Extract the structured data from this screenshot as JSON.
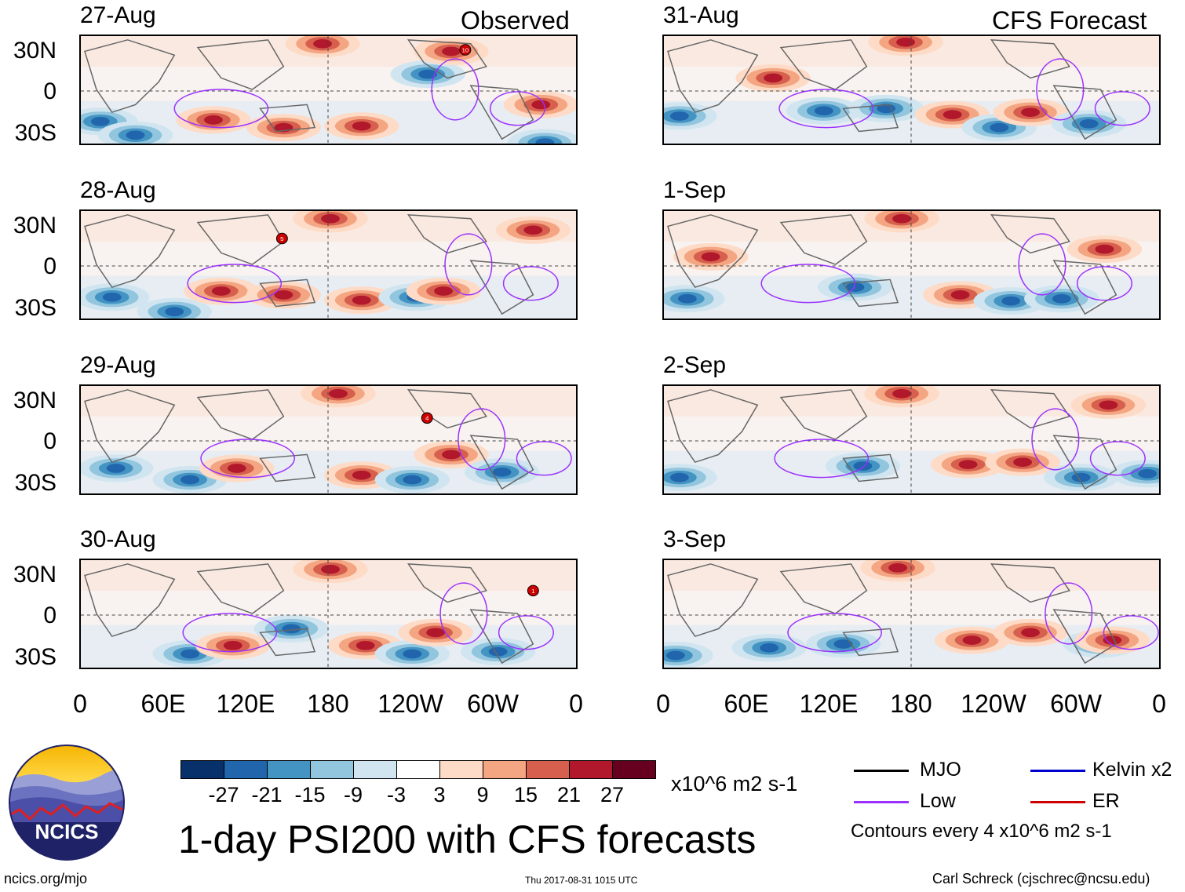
{
  "header": {
    "observed_label": "Observed",
    "forecast_label": "CFS Forecast"
  },
  "panels": [
    {
      "date": "27-Aug"
    },
    {
      "date": "28-Aug"
    },
    {
      "date": "29-Aug"
    },
    {
      "date": "30-Aug"
    },
    {
      "date": "31-Aug"
    },
    {
      "date": "1-Sep"
    },
    {
      "date": "2-Sep"
    },
    {
      "date": "3-Sep"
    }
  ],
  "axes": {
    "lat_labels": [
      "30N",
      "0",
      "30S"
    ],
    "lon_labels": [
      "0",
      "60E",
      "120E",
      "180",
      "120W",
      "60W",
      "0"
    ]
  },
  "storm_markers": [
    "10",
    "5",
    "4",
    "1"
  ],
  "colorbar": {
    "colors": [
      "#08306b",
      "#2166ac",
      "#4393c3",
      "#92c5de",
      "#d1e5f0",
      "#ffffff",
      "#fddbc7",
      "#f4a582",
      "#d6604d",
      "#b2182b",
      "#67001f"
    ],
    "tick_labels": [
      "-27",
      "-21",
      "-15",
      "-9",
      "-3",
      "3",
      "9",
      "15",
      "21",
      "27"
    ],
    "units": "x10^6 m2 s-1"
  },
  "legend": {
    "items": [
      {
        "label": "MJO",
        "color": "#000000"
      },
      {
        "label": "Kelvin x2",
        "color": "#0000cc"
      },
      {
        "label": "Low",
        "color": "#9b30ff"
      },
      {
        "label": "ER",
        "color": "#cc0000"
      }
    ],
    "contour_note": "Contours every 4 x10^6 m2 s-1"
  },
  "title": "1-day PSI200 with CFS forecasts",
  "logo_text": "NCICS",
  "footer": {
    "url": "ncics.org/mjo",
    "timestamp": "Thu 2017-08-31 1015 UTC",
    "credit": "Carl Schreck (cjschrec@ncsu.edu)"
  }
}
